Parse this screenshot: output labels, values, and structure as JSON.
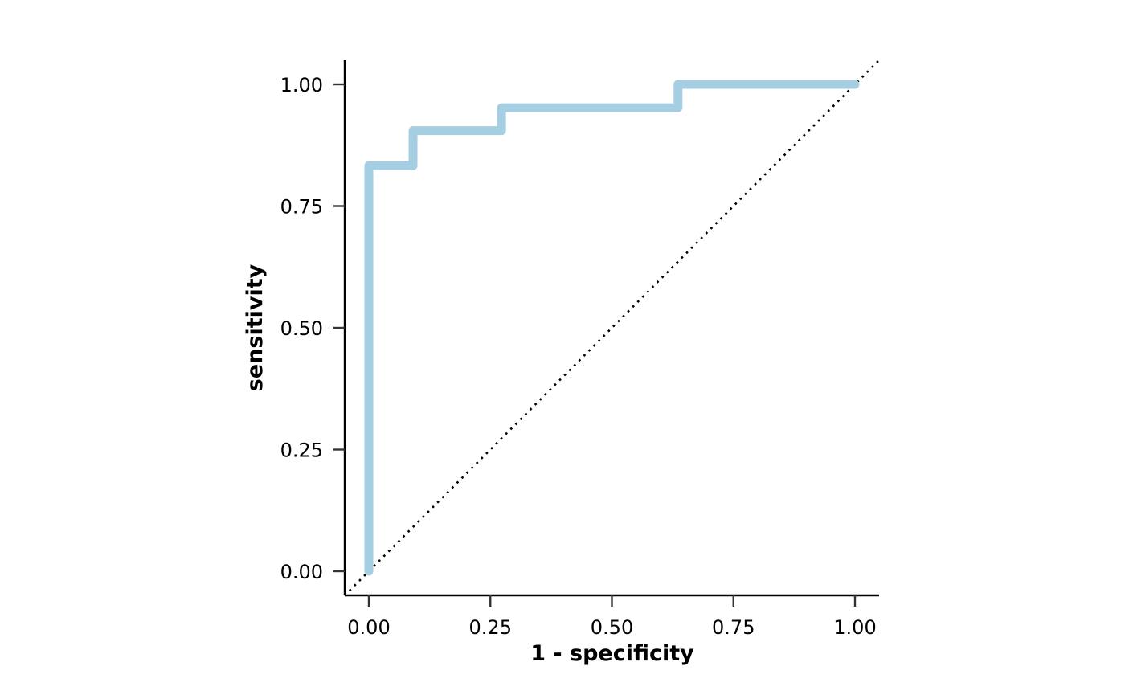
{
  "chart_data": {
    "type": "line",
    "title": "",
    "xlabel": "1 - specificity",
    "ylabel": "sensitivity",
    "xlim": [
      -0.05,
      1.05
    ],
    "ylim": [
      -0.05,
      1.05
    ],
    "x_ticks": [
      0,
      0.25,
      0.5,
      0.75,
      1
    ],
    "y_ticks": [
      0,
      0.25,
      0.5,
      0.75,
      1
    ],
    "x_tick_labels": [
      "0.00",
      "0.25",
      "0.50",
      "0.75",
      "1.00"
    ],
    "y_tick_labels": [
      "0.00",
      "0.25",
      "0.50",
      "0.75",
      "1.00"
    ],
    "grid": false,
    "legend": "none",
    "series": [
      {
        "style": "step",
        "color": "#a6cee3",
        "x": [
          0,
          0,
          0.091,
          0.091,
          0.273,
          0.273,
          0.636,
          0.636,
          1
        ],
        "y": [
          0,
          0.833,
          0.833,
          0.905,
          0.905,
          0.952,
          0.952,
          1,
          1
        ]
      }
    ],
    "reference_line": {
      "style": "dotted",
      "color": "#000000",
      "x": [
        -0.05,
        1.05
      ],
      "y": [
        -0.05,
        1.05
      ]
    }
  }
}
